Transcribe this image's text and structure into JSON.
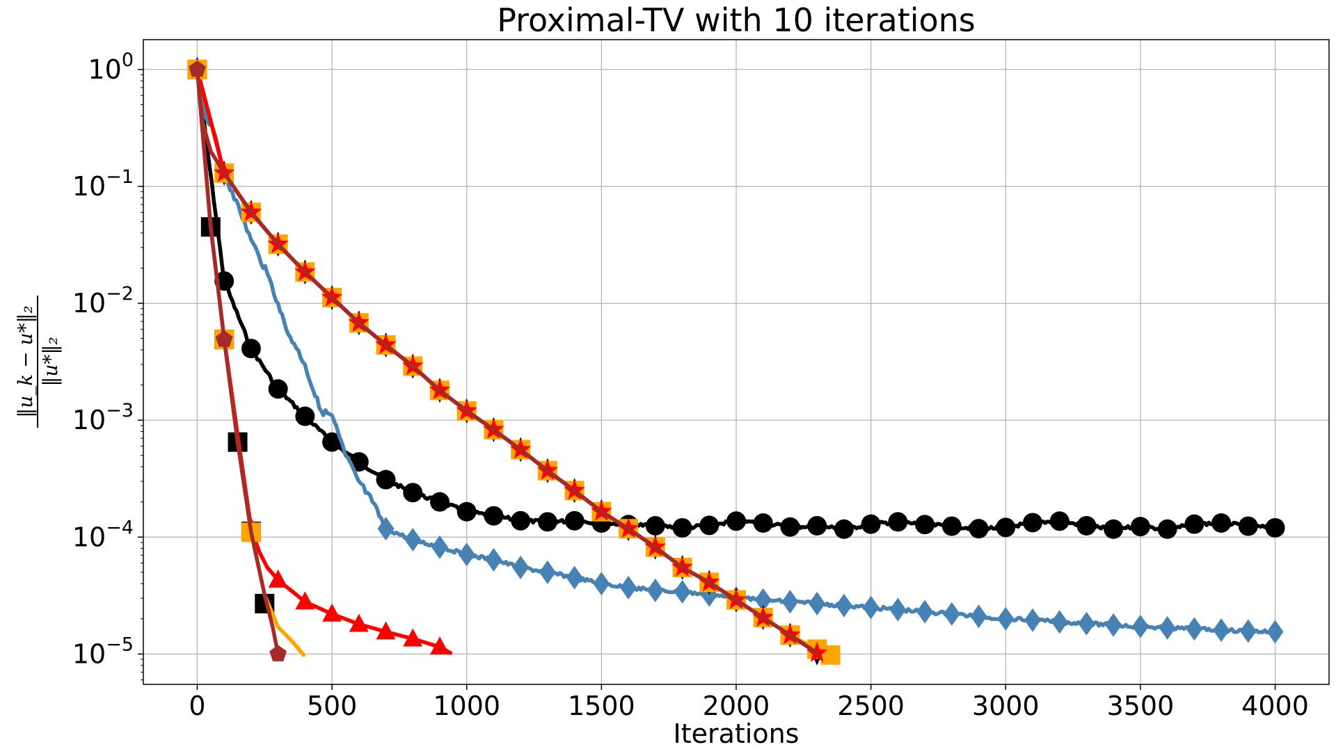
{
  "chart_data": {
    "type": "line",
    "title": "Proximal-TV with 10 iterations",
    "xlabel": "Iterations",
    "ylabel": {
      "numerator": "‖u_k − u*‖₂",
      "denominator": "‖u*‖₂"
    },
    "yscale": "log",
    "xlim": [
      -200,
      4200
    ],
    "ylim": [
      5.5e-06,
      1.8
    ],
    "grid": true,
    "legend": "none",
    "x_ticks": [
      0,
      500,
      1000,
      1500,
      2000,
      2500,
      3000,
      3500,
      4000
    ],
    "y_ticks": [
      {
        "value": 1,
        "base": "10",
        "exp": "0"
      },
      {
        "value": 0.1,
        "base": "10",
        "exp": "−1"
      },
      {
        "value": 0.01,
        "base": "10",
        "exp": "−2"
      },
      {
        "value": 0.001,
        "base": "10",
        "exp": "−3"
      },
      {
        "value": 0.0001,
        "base": "10",
        "exp": "−4"
      },
      {
        "value": 1e-05,
        "base": "10",
        "exp": "−5"
      }
    ],
    "series": [
      {
        "name": "black-circle",
        "color": "#000000",
        "marker": "circle",
        "x": [
          0,
          100,
          200,
          300,
          400,
          500,
          600,
          700,
          800,
          900,
          1000,
          1100,
          1200,
          1300,
          1400,
          1500,
          1600,
          1700,
          1800,
          1900,
          2000,
          2100,
          2200,
          2300,
          2400,
          2500,
          2600,
          2700,
          2800,
          2900,
          3000,
          3100,
          3200,
          3300,
          3400,
          3500,
          3600,
          3700,
          3800,
          3900,
          4000
        ],
        "y": [
          1.0,
          0.0155,
          0.0041,
          0.00185,
          0.00108,
          0.00065,
          0.00044,
          0.00031,
          0.00024,
          0.0002,
          0.000165,
          0.000152,
          0.000138,
          0.000135,
          0.000138,
          0.000132,
          0.000128,
          0.000125,
          0.00012,
          0.000126,
          0.000137,
          0.000132,
          0.000122,
          0.000125,
          0.000117,
          0.000129,
          0.000135,
          0.000128,
          0.000124,
          0.000118,
          0.000121,
          0.000133,
          0.000137,
          0.000125,
          0.000117,
          0.000123,
          0.000117,
          0.000129,
          0.000132,
          0.000124,
          0.00012
        ],
        "jitter": true
      },
      {
        "name": "steelblue-diamond",
        "color": "#4682b4",
        "marker": "diamond",
        "x": [
          0,
          30,
          60,
          100,
          130,
          160,
          200,
          230,
          260,
          300,
          330,
          360,
          400,
          430,
          460,
          500,
          550,
          600,
          650,
          700,
          800,
          900,
          1000,
          1100,
          1200,
          1300,
          1400,
          1500,
          1600,
          1700,
          1800,
          1900,
          2000,
          2100,
          2200,
          2300,
          2400,
          2500,
          2600,
          2700,
          2800,
          2900,
          3000,
          3100,
          3200,
          3300,
          3400,
          3500,
          3600,
          3700,
          3800,
          3900,
          4000
        ],
        "y": [
          1.0,
          0.4,
          0.3,
          0.13,
          0.09,
          0.06,
          0.035,
          0.025,
          0.018,
          0.01,
          0.006,
          0.0045,
          0.003,
          0.0018,
          0.0012,
          0.0011,
          0.0005,
          0.0003,
          0.0002,
          0.000118,
          9.5e-05,
          8.2e-05,
          7.1e-05,
          6.4e-05,
          5.5e-05,
          5e-05,
          4.5e-05,
          4e-05,
          3.7e-05,
          3.5e-05,
          3.4e-05,
          3.2e-05,
          3e-05,
          2.9e-05,
          2.8e-05,
          2.7e-05,
          2.6e-05,
          2.5e-05,
          2.4e-05,
          2.3e-05,
          2.2e-05,
          2.1e-05,
          2e-05,
          1.95e-05,
          1.88e-05,
          1.82e-05,
          1.77e-05,
          1.72e-05,
          1.67e-05,
          1.64e-05,
          1.6e-05,
          1.57e-05,
          1.55e-05
        ],
        "markers_at": [
          0,
          700,
          800,
          900,
          1000,
          1100,
          1200,
          1300,
          1400,
          1500,
          1600,
          1700,
          1800,
          1900,
          2000,
          2100,
          2200,
          2300,
          2400,
          2500,
          2600,
          2700,
          2800,
          2900,
          3000,
          3100,
          3200,
          3300,
          3400,
          3500,
          3600,
          3700,
          3800,
          3900,
          4000
        ],
        "jitter": true
      },
      {
        "name": "black-diamond",
        "color": "#000000",
        "marker": "thin-diamond",
        "x": [
          0,
          100,
          200,
          300,
          400,
          500,
          600,
          700,
          800,
          900,
          1000,
          1100,
          1200,
          1300,
          1400,
          1500,
          1600,
          1700,
          1800,
          1900,
          2000,
          2100,
          2200,
          2300
        ],
        "y": [
          1.0,
          0.13,
          0.06,
          0.032,
          0.0185,
          0.0112,
          0.0068,
          0.0044,
          0.0029,
          0.0018,
          0.0012,
          0.00083,
          0.00056,
          0.00037,
          0.00025,
          0.000165,
          0.000118,
          8.2e-05,
          5.5e-05,
          4.1e-05,
          2.9e-05,
          2.05e-05,
          1.45e-05,
          1.02e-05
        ]
      },
      {
        "name": "orange-square",
        "color": "#ffa500",
        "marker": "square",
        "x": [
          0,
          100,
          200,
          300,
          400,
          500,
          600,
          700,
          800,
          900,
          1000,
          1100,
          1200,
          1300,
          1400,
          1500,
          1600,
          1700,
          1800,
          1900,
          2000,
          2100,
          2200,
          2300,
          2350
        ],
        "y": [
          1.0,
          0.13,
          0.06,
          0.032,
          0.0185,
          0.0112,
          0.0068,
          0.0044,
          0.0029,
          0.0018,
          0.0012,
          0.00083,
          0.00056,
          0.00037,
          0.00025,
          0.000165,
          0.000118,
          8.2e-05,
          5.5e-05,
          4.1e-05,
          2.9e-05,
          2.05e-05,
          1.45e-05,
          1.1e-05,
          9.8e-06
        ]
      },
      {
        "name": "red-star",
        "color": "#ff0000",
        "marker": "star",
        "x": [
          0,
          100,
          200,
          300,
          400,
          500,
          600,
          700,
          800,
          900,
          1000,
          1100,
          1200,
          1300,
          1400,
          1500,
          1600,
          1700,
          1800,
          1900,
          2000,
          2100,
          2200,
          2300
        ],
        "y": [
          1.0,
          0.13,
          0.06,
          0.032,
          0.0185,
          0.0112,
          0.0068,
          0.0044,
          0.0029,
          0.0018,
          0.0012,
          0.00083,
          0.00056,
          0.00037,
          0.00025,
          0.000165,
          0.000118,
          8.2e-05,
          5.5e-05,
          4.1e-05,
          2.9e-05,
          2.05e-05,
          1.45e-05,
          1.02e-05
        ]
      },
      {
        "name": "brown-long",
        "color": "#a52a2a",
        "marker": "none",
        "x": [
          0,
          20,
          50,
          100,
          200,
          300,
          400,
          500,
          600,
          700,
          800,
          900,
          1000,
          1100,
          1200,
          1300,
          1400,
          1500,
          1600,
          1700,
          1800,
          1900,
          2000,
          2100,
          2200,
          2300
        ],
        "y": [
          1.0,
          0.35,
          0.2,
          0.13,
          0.06,
          0.032,
          0.0185,
          0.0112,
          0.0068,
          0.0044,
          0.0029,
          0.0018,
          0.0012,
          0.00083,
          0.00056,
          0.00037,
          0.00025,
          0.000165,
          0.000118,
          8.2e-05,
          5.5e-05,
          4.1e-05,
          2.9e-05,
          2.05e-05,
          1.45e-05,
          1.02e-05
        ]
      },
      {
        "name": "black-square",
        "color": "#000000",
        "marker": "square",
        "line": false,
        "x": [
          0,
          50,
          100,
          150,
          200,
          250
        ],
        "y": [
          1.0,
          0.045,
          0.0049,
          0.00065,
          0.000112,
          2.7e-05
        ]
      },
      {
        "name": "red-triangle",
        "color": "#ff0000",
        "marker": "triangle",
        "x": [
          0,
          50,
          100,
          150,
          200,
          230,
          260,
          300,
          400,
          500,
          600,
          700,
          800,
          900,
          940
        ],
        "y": [
          1.0,
          0.045,
          0.005,
          0.00075,
          0.00012,
          7.5e-05,
          5.5e-05,
          4.3e-05,
          2.8e-05,
          2.2e-05,
          1.8e-05,
          1.55e-05,
          1.35e-05,
          1.15e-05,
          1.02e-05
        ],
        "markers_at": [
          0,
          100,
          200,
          300,
          400,
          500,
          600,
          700,
          800,
          900
        ]
      },
      {
        "name": "orange-short",
        "color": "#ffa500",
        "marker": "square",
        "x": [
          0,
          50,
          100,
          150,
          200,
          250,
          300,
          350,
          395
        ],
        "y": [
          1.0,
          0.045,
          0.0049,
          0.00065,
          0.00011,
          3.2e-05,
          1.7e-05,
          1.3e-05,
          9.8e-06
        ],
        "markers_at": [
          0,
          100,
          200
        ]
      },
      {
        "name": "brown-short",
        "color": "#a52a2a",
        "marker": "pentagon",
        "x": [
          0,
          50,
          100,
          150,
          200,
          250,
          280,
          300
        ],
        "y": [
          1.0,
          0.045,
          0.0049,
          0.00065,
          0.00011,
          3.2e-05,
          1.7e-05,
          1e-05
        ],
        "markers_at": [
          0,
          100,
          300
        ]
      }
    ]
  }
}
